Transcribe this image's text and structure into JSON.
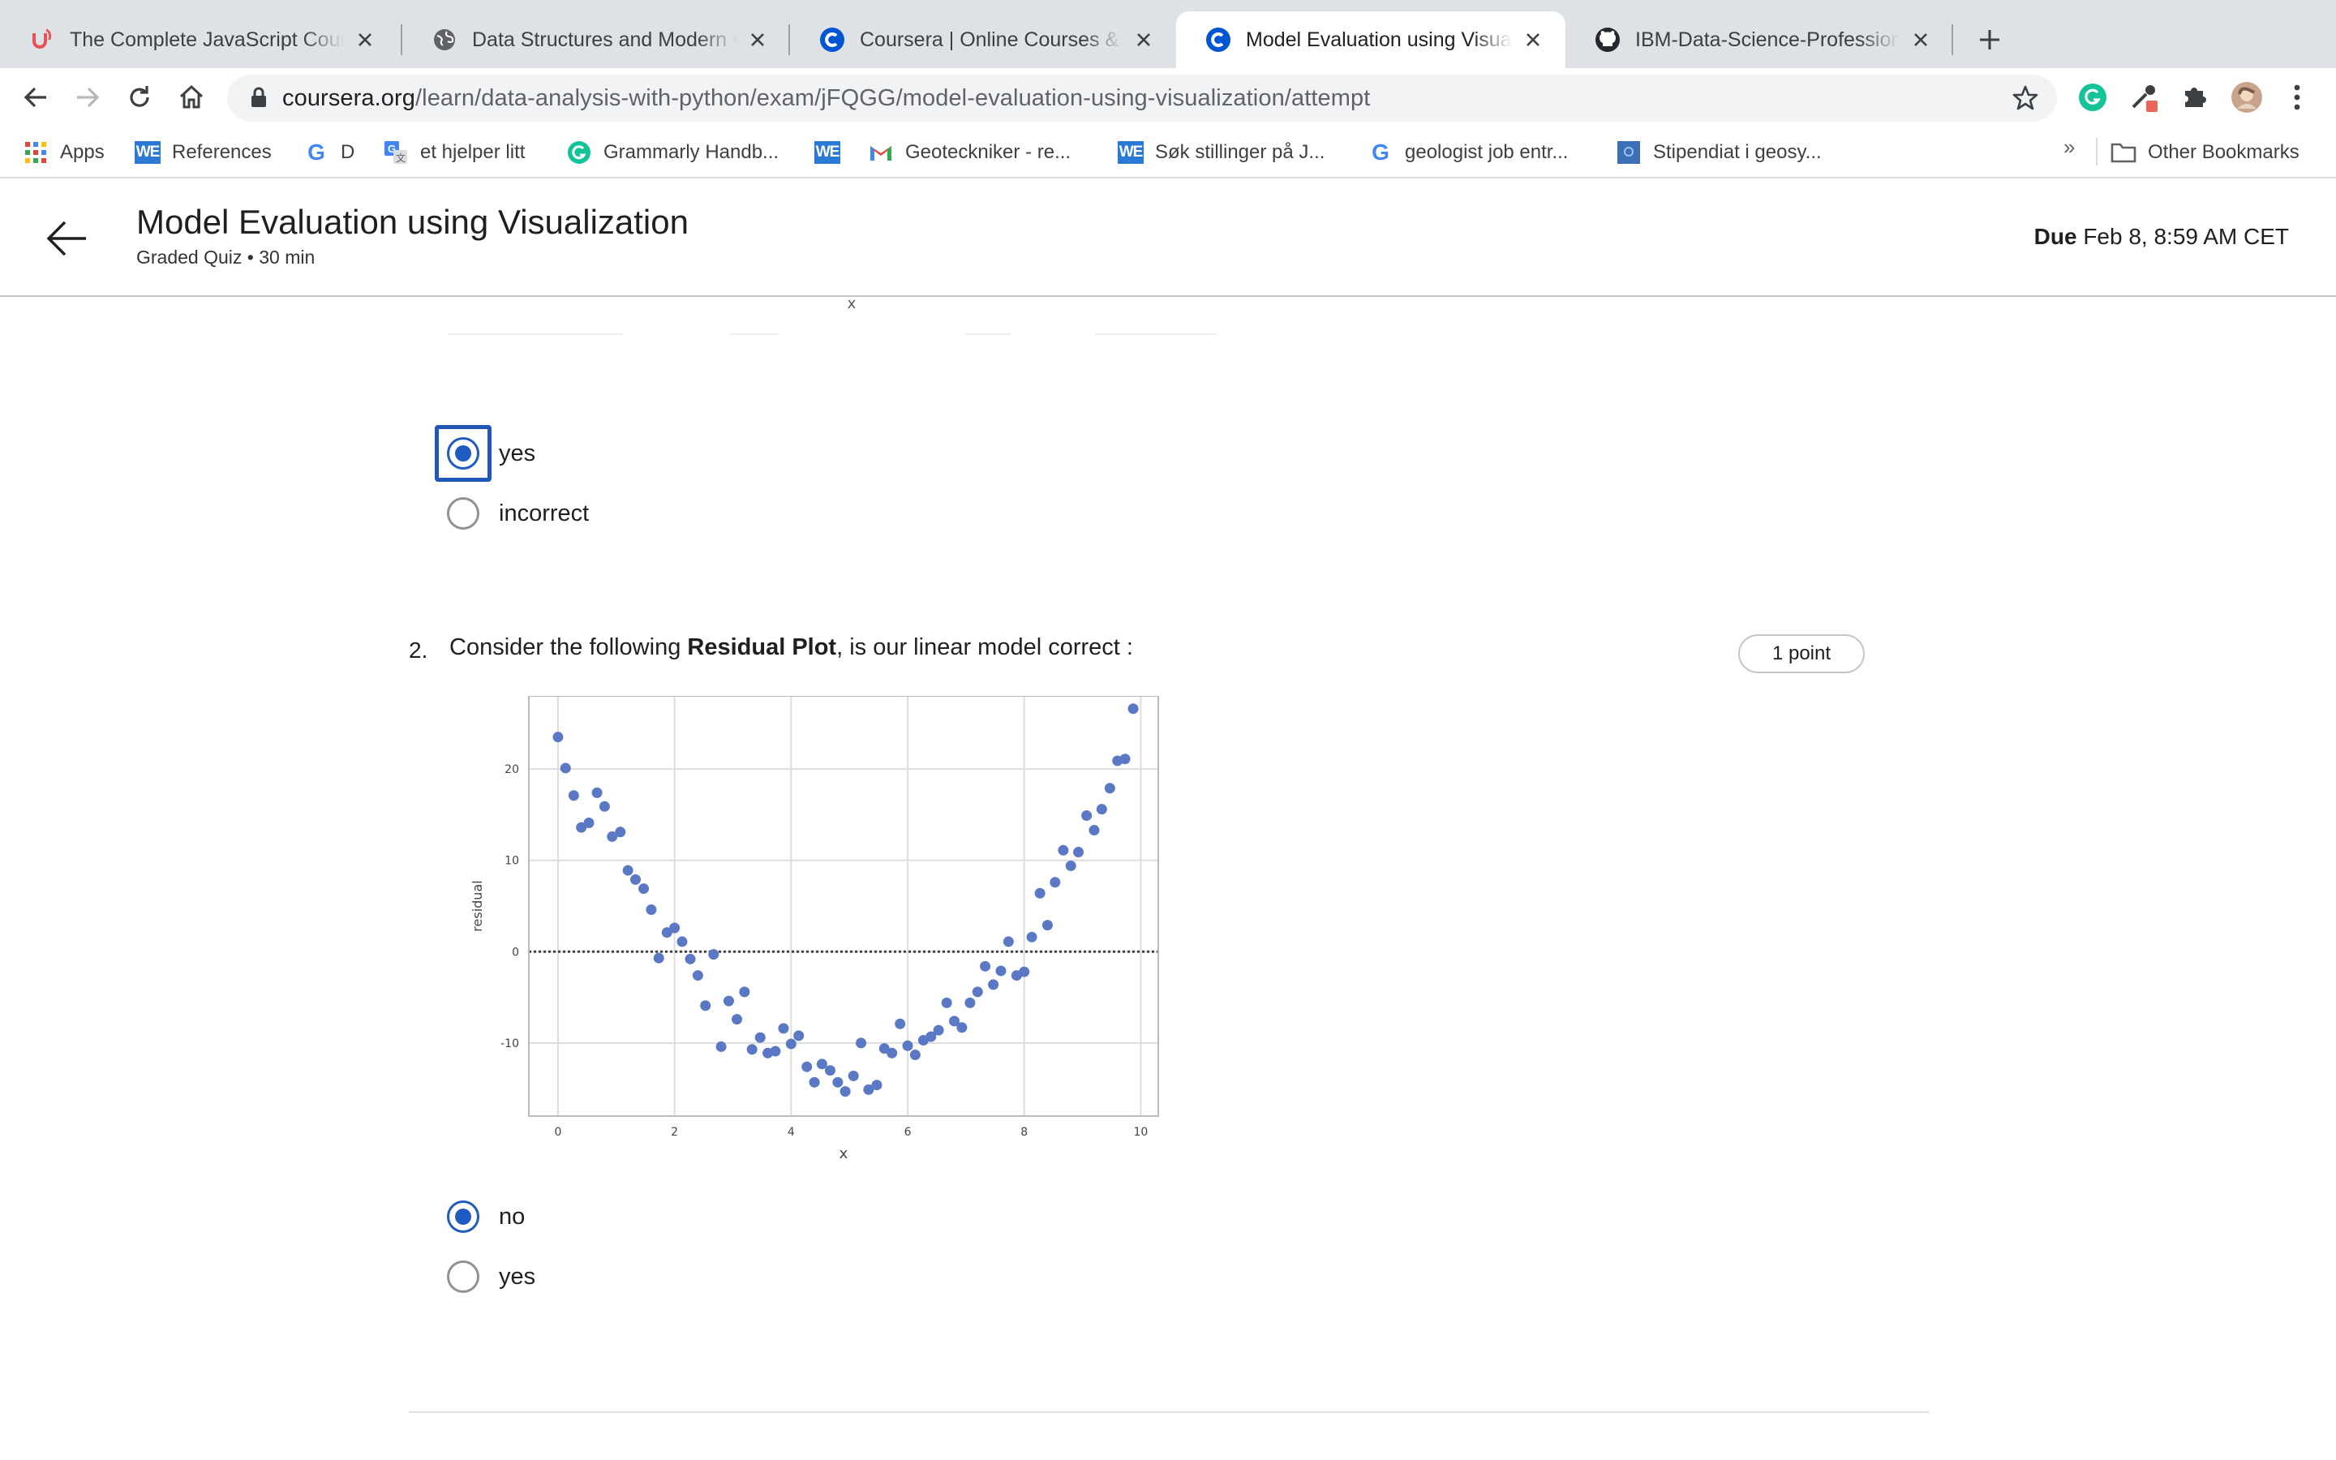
{
  "browser": {
    "tabs": [
      {
        "title": "The Complete JavaScript Course",
        "icon": "udemy-icon",
        "active": false
      },
      {
        "title": "Data Structures and Modern Operators",
        "icon": "globe-icon",
        "active": false
      },
      {
        "title": "Coursera | Online Courses & Credentials",
        "icon": "coursera-icon",
        "active": false
      },
      {
        "title": "Model Evaluation using Visualization",
        "icon": "coursera-icon",
        "active": true
      },
      {
        "title": "IBM-Data-Science-Professional",
        "icon": "github-icon",
        "active": false
      }
    ],
    "url_host": "coursera.org",
    "url_path": "/learn/data-analysis-with-python/exam/jFQGG/model-evaluation-using-visualization/attempt",
    "bookmarks": [
      {
        "label": "Apps",
        "icon": "apps-grid-icon"
      },
      {
        "label": "References",
        "icon": "we-icon"
      },
      {
        "label": "D",
        "icon": "google-icon"
      },
      {
        "label": "et hjelper litt",
        "icon": "google-translate-icon"
      },
      {
        "label": "Grammarly Handb...",
        "icon": "grammarly-icon"
      },
      {
        "label": "",
        "icon": "we-icon"
      },
      {
        "label": "Geoteckniker - re...",
        "icon": "gmail-icon"
      },
      {
        "label": "Søk stillinger på J...",
        "icon": "we-icon"
      },
      {
        "label": "geologist job entr...",
        "icon": "google-icon"
      },
      {
        "label": "Stipendiat i geosy...",
        "icon": "bookmark-square-icon"
      }
    ],
    "bookmarks_overflow": "»",
    "other_bookmarks": "Other Bookmarks"
  },
  "header": {
    "title": "Model Evaluation using Visualization",
    "subtitle": "Graded Quiz • 30 min",
    "due_label": "Due",
    "due_value": "Feb 8, 8:59 AM CET"
  },
  "question1": {
    "options": [
      {
        "label": "yes",
        "selected": true
      },
      {
        "label": "incorrect",
        "selected": false
      }
    ]
  },
  "question2": {
    "number": "2.",
    "text_before": "Consider the following ",
    "text_bold": "Residual Plot",
    "text_after": ", is our linear model correct :",
    "points": "1 point",
    "options": [
      {
        "label": "no",
        "selected": true
      },
      {
        "label": "yes",
        "selected": false
      }
    ]
  },
  "chart_top_fragment": {
    "xlabel": "x"
  },
  "chart_data": {
    "type": "scatter",
    "title": "",
    "xlabel": "x",
    "ylabel": "residual",
    "xlim": [
      -0.5,
      10.3
    ],
    "ylim": [
      -18,
      28
    ],
    "xticks": [
      0,
      2,
      4,
      6,
      8,
      10
    ],
    "yticks": [
      -10,
      0,
      10,
      20
    ],
    "grid": true,
    "reference_line_y": 0,
    "points": [
      [
        0.0,
        23.5
      ],
      [
        0.13,
        20.1
      ],
      [
        0.27,
        17.1
      ],
      [
        0.4,
        13.6
      ],
      [
        0.53,
        14.1
      ],
      [
        0.67,
        17.4
      ],
      [
        0.8,
        15.9
      ],
      [
        0.93,
        12.6
      ],
      [
        1.07,
        13.1
      ],
      [
        1.2,
        8.9
      ],
      [
        1.33,
        7.9
      ],
      [
        1.47,
        6.9
      ],
      [
        1.6,
        4.6
      ],
      [
        1.73,
        -0.7
      ],
      [
        1.87,
        2.1
      ],
      [
        2.0,
        2.6
      ],
      [
        2.13,
        1.1
      ],
      [
        2.27,
        -0.8
      ],
      [
        2.4,
        -2.6
      ],
      [
        2.53,
        -5.9
      ],
      [
        2.67,
        -0.3
      ],
      [
        2.8,
        -10.4
      ],
      [
        2.93,
        -5.4
      ],
      [
        3.07,
        -7.4
      ],
      [
        3.2,
        -4.4
      ],
      [
        3.33,
        -10.7
      ],
      [
        3.47,
        -9.4
      ],
      [
        3.6,
        -11.1
      ],
      [
        3.73,
        -10.9
      ],
      [
        3.87,
        -8.4
      ],
      [
        4.0,
        -10.1
      ],
      [
        4.13,
        -9.2
      ],
      [
        4.27,
        -12.6
      ],
      [
        4.4,
        -14.3
      ],
      [
        4.53,
        -12.3
      ],
      [
        4.67,
        -13.0
      ],
      [
        4.8,
        -14.3
      ],
      [
        4.93,
        -15.3
      ],
      [
        5.07,
        -13.6
      ],
      [
        5.2,
        -10.0
      ],
      [
        5.33,
        -15.1
      ],
      [
        5.47,
        -14.6
      ],
      [
        5.6,
        -10.6
      ],
      [
        5.73,
        -11.1
      ],
      [
        5.87,
        -7.9
      ],
      [
        6.0,
        -10.3
      ],
      [
        6.13,
        -11.3
      ],
      [
        6.27,
        -9.7
      ],
      [
        6.4,
        -9.3
      ],
      [
        6.53,
        -8.6
      ],
      [
        6.67,
        -5.6
      ],
      [
        6.8,
        -7.6
      ],
      [
        6.93,
        -8.3
      ],
      [
        7.07,
        -5.6
      ],
      [
        7.2,
        -4.4
      ],
      [
        7.33,
        -1.6
      ],
      [
        7.47,
        -3.6
      ],
      [
        7.6,
        -2.1
      ],
      [
        7.73,
        1.1
      ],
      [
        7.87,
        -2.6
      ],
      [
        8.0,
        -2.2
      ],
      [
        8.13,
        1.6
      ],
      [
        8.27,
        6.4
      ],
      [
        8.4,
        2.9
      ],
      [
        8.53,
        7.6
      ],
      [
        8.67,
        11.1
      ],
      [
        8.8,
        9.4
      ],
      [
        8.93,
        10.9
      ],
      [
        9.07,
        14.9
      ],
      [
        9.2,
        13.3
      ],
      [
        9.33,
        15.6
      ],
      [
        9.47,
        17.9
      ],
      [
        9.6,
        20.9
      ],
      [
        9.73,
        21.1
      ],
      [
        9.87,
        26.6
      ]
    ]
  }
}
